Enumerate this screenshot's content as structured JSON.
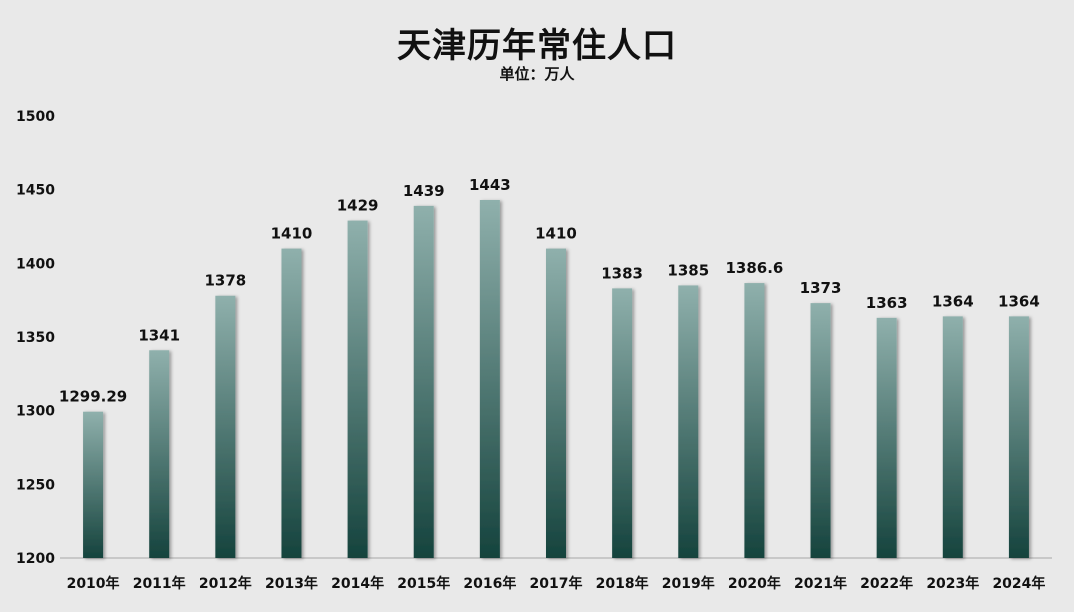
{
  "title": "天津历年常住人口",
  "subtitle": "单位：万人",
  "colors": {
    "background": "#e9e9e9",
    "bar_top": "#8fb0ac",
    "bar_bottom": "#15433d",
    "axis": "#a8a8a8"
  },
  "chart_data": {
    "type": "bar",
    "title": "天津历年常住人口",
    "subtitle": "单位：万人",
    "categories": [
      "2010年",
      "2011年",
      "2012年",
      "2013年",
      "2014年",
      "2015年",
      "2016年",
      "2017年",
      "2018年",
      "2019年",
      "2020年",
      "2021年",
      "2022年",
      "2023年",
      "2024年"
    ],
    "values": [
      1299.29,
      1341,
      1378,
      1410,
      1429,
      1439,
      1443,
      1410,
      1383,
      1385,
      1386.6,
      1373,
      1363,
      1364,
      1364
    ],
    "data_labels": [
      "1299.29",
      "1341",
      "1378",
      "1410",
      "1429",
      "1439",
      "1443",
      "1410",
      "1383",
      "1385",
      "1386.6",
      "1373",
      "1363",
      "1364",
      "1364"
    ],
    "ylim": [
      1200,
      1500
    ],
    "yticks": [
      1200,
      1250,
      1300,
      1350,
      1400,
      1450,
      1500
    ],
    "xlabel": "",
    "ylabel": "",
    "grid": false,
    "legend": "none"
  }
}
